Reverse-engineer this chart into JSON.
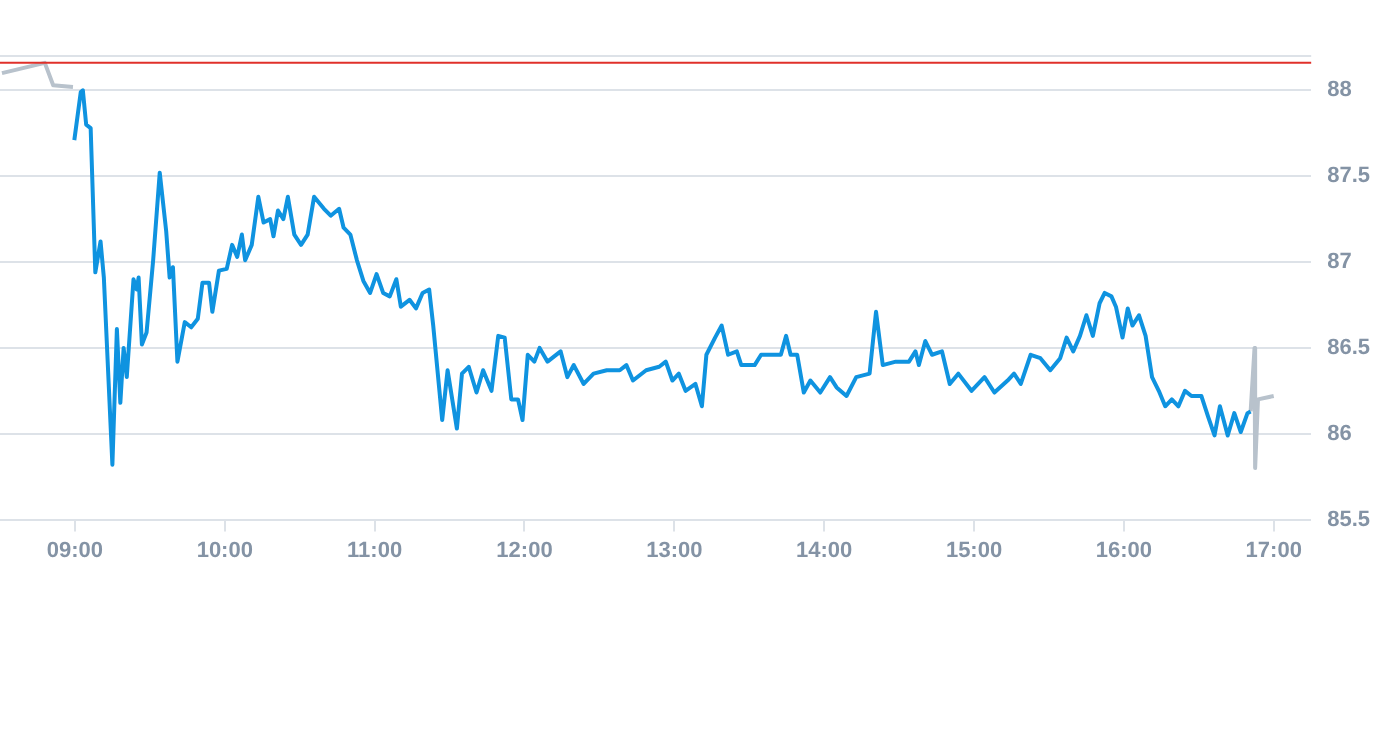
{
  "chart_data": {
    "type": "line",
    "xlim": [
      8.5,
      17.25
    ],
    "ylim": [
      85.5,
      88.2
    ],
    "xticks": [
      {
        "value": 9,
        "label": "09:00"
      },
      {
        "value": 10,
        "label": "10:00"
      },
      {
        "value": 11,
        "label": "11:00"
      },
      {
        "value": 12,
        "label": "12:00"
      },
      {
        "value": 13,
        "label": "13:00"
      },
      {
        "value": 14,
        "label": "14:00"
      },
      {
        "value": 15,
        "label": "15:00"
      },
      {
        "value": 16,
        "label": "16:00"
      },
      {
        "value": 17,
        "label": "17:00"
      }
    ],
    "yticks": [
      85.5,
      86,
      86.5,
      87,
      87.5,
      88
    ],
    "grid": "y",
    "legend": false,
    "marker": "none",
    "line_style": "solid",
    "ref_lines": [
      {
        "axis": "y",
        "value": 88.16,
        "color": "#e0302a"
      }
    ],
    "series": [
      {
        "color": "#b8c2cc",
        "x": [
          8.513,
          8.799,
          8.855,
          8.987
        ],
        "values": [
          88.1,
          88.16,
          88.03,
          88.02
        ]
      },
      {
        "color": "#0f93e0",
        "x": [
          8.996,
          9.039,
          9.053,
          9.075,
          9.105,
          9.136,
          9.171,
          9.193,
          9.25,
          9.28,
          9.303,
          9.325,
          9.346,
          9.391,
          9.412,
          9.425,
          9.447,
          9.478,
          9.522,
          9.566,
          9.609,
          9.632,
          9.654,
          9.684,
          9.733,
          9.776,
          9.82,
          9.851,
          9.895,
          9.917,
          9.961,
          10.013,
          10.049,
          10.083,
          10.114,
          10.136,
          10.18,
          10.224,
          10.259,
          10.303,
          10.325,
          10.355,
          10.391,
          10.421,
          10.464,
          10.509,
          10.553,
          10.596,
          10.662,
          10.707,
          10.763,
          10.793,
          10.838,
          10.882,
          10.925,
          10.97,
          11.013,
          11.057,
          11.101,
          11.145,
          11.175,
          11.233,
          11.276,
          11.32,
          11.364,
          11.391,
          11.451,
          11.487,
          11.549,
          11.583,
          11.628,
          11.68,
          11.724,
          11.78,
          11.825,
          11.868,
          11.912,
          11.957,
          11.987,
          12.022,
          12.066,
          12.101,
          12.154,
          12.241,
          12.286,
          12.329,
          12.395,
          12.461,
          12.549,
          12.636,
          12.68,
          12.724,
          12.812,
          12.899,
          12.943,
          12.987,
          13.03,
          13.075,
          13.141,
          13.184,
          13.214,
          13.272,
          13.316,
          13.359,
          13.417,
          13.447,
          13.536,
          13.579,
          13.645,
          13.711,
          13.746,
          13.776,
          13.82,
          13.864,
          13.908,
          13.974,
          14.039,
          14.083,
          14.149,
          14.214,
          14.303,
          14.346,
          14.391,
          14.478,
          14.566,
          14.609,
          14.632,
          14.675,
          14.72,
          14.786,
          14.838,
          14.895,
          14.983,
          15.07,
          15.136,
          15.224,
          15.267,
          15.312,
          15.378,
          15.443,
          15.509,
          15.575,
          15.618,
          15.662,
          15.707,
          15.75,
          15.793,
          15.838,
          15.872,
          15.917,
          15.947,
          15.991,
          16.026,
          16.057,
          16.101,
          16.145,
          16.188,
          16.233,
          16.276,
          16.32,
          16.364,
          16.408,
          16.451,
          16.517,
          16.562,
          16.605,
          16.641,
          16.693,
          16.737,
          16.78,
          16.825,
          16.846
        ],
        "values": [
          87.71,
          87.99,
          88.0,
          87.8,
          87.78,
          86.94,
          87.12,
          86.91,
          85.82,
          86.61,
          86.18,
          86.5,
          86.33,
          86.9,
          86.84,
          86.91,
          86.52,
          86.59,
          87.01,
          87.52,
          87.18,
          86.91,
          86.97,
          86.42,
          86.65,
          86.62,
          86.67,
          86.88,
          86.88,
          86.71,
          86.95,
          86.96,
          87.1,
          87.03,
          87.16,
          87.01,
          87.1,
          87.38,
          87.23,
          87.25,
          87.15,
          87.3,
          87.25,
          87.38,
          87.16,
          87.1,
          87.16,
          87.38,
          87.31,
          87.27,
          87.31,
          87.2,
          87.16,
          87.01,
          86.89,
          86.82,
          86.93,
          86.82,
          86.8,
          86.9,
          86.74,
          86.78,
          86.73,
          86.82,
          86.84,
          86.63,
          86.08,
          86.37,
          86.03,
          86.35,
          86.39,
          86.24,
          86.37,
          86.25,
          86.57,
          86.56,
          86.2,
          86.2,
          86.08,
          86.46,
          86.42,
          86.5,
          86.42,
          86.48,
          86.33,
          86.4,
          86.29,
          86.35,
          86.37,
          86.37,
          86.4,
          86.31,
          86.37,
          86.39,
          86.42,
          86.31,
          86.35,
          86.25,
          86.29,
          86.16,
          86.46,
          86.56,
          86.63,
          86.46,
          86.48,
          86.4,
          86.4,
          86.46,
          86.46,
          86.46,
          86.57,
          86.46,
          86.46,
          86.24,
          86.31,
          86.24,
          86.33,
          86.27,
          86.22,
          86.33,
          86.35,
          86.71,
          86.4,
          86.42,
          86.42,
          86.48,
          86.4,
          86.54,
          86.46,
          86.48,
          86.29,
          86.35,
          86.25,
          86.33,
          86.24,
          86.31,
          86.35,
          86.29,
          86.46,
          86.44,
          86.37,
          86.44,
          86.56,
          86.48,
          86.57,
          86.69,
          86.57,
          86.76,
          86.82,
          86.8,
          86.74,
          86.56,
          86.73,
          86.63,
          86.69,
          86.57,
          86.33,
          86.25,
          86.16,
          86.2,
          86.16,
          86.25,
          86.22,
          86.22,
          86.1,
          85.99,
          86.16,
          85.99,
          86.12,
          86.01,
          86.12,
          86.13
        ]
      },
      {
        "color": "#b8c2cc",
        "x": [
          16.846,
          16.872,
          16.876,
          16.895,
          17.0
        ],
        "values": [
          86.13,
          86.5,
          85.8,
          86.2,
          86.22
        ]
      }
    ]
  }
}
